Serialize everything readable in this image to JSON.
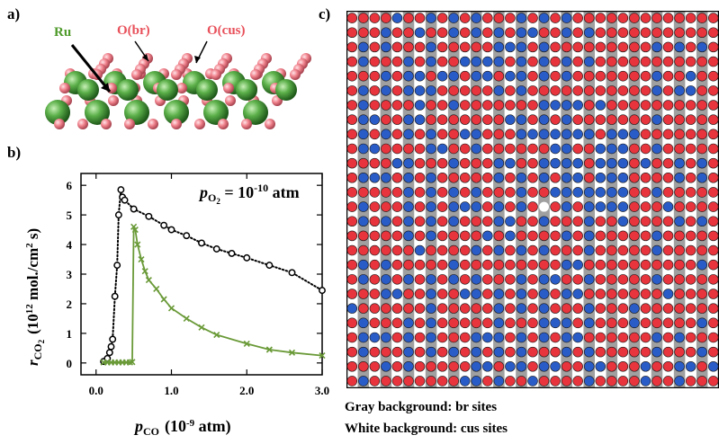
{
  "panel_a": {
    "letter": "a)",
    "labels": {
      "ru": "Ru",
      "o_br": "O(br)",
      "o_cus": "O(cus)"
    },
    "colors": {
      "ru": "#5cb04a",
      "o": "#f0828c",
      "label_o": "#e8505a",
      "label_ru": "#4e9a2a"
    }
  },
  "panel_b": {
    "letter": "b)",
    "annotation": {
      "p": "p",
      "sub": "O",
      "subsub": "2",
      "rest": " = 10",
      "exp": "-10",
      "unit": " atm"
    },
    "ylabel": {
      "r": "r",
      "sub": "CO",
      "subsub": "2",
      "units_a": "(10",
      "exp": "12",
      "units_b": " mol./cm",
      "exp2": "2",
      "units_c": " s)"
    },
    "xlabel": {
      "p": "p",
      "sub": "CO",
      "units_a": "(10",
      "exp": "-9",
      "units_b": " atm)"
    },
    "colors": {
      "black_series": "#000000",
      "green_series": "#6a9a38"
    }
  },
  "chart_data": {
    "type": "line",
    "title": "",
    "xlabel": "p_CO (10^-9 atm)",
    "ylabel": "r_CO2 (10^12 mol./cm^2 s)",
    "xlim": [
      -0.2,
      3.0
    ],
    "ylim": [
      -0.4,
      6.4
    ],
    "xticks": [
      "0.0",
      "1.0",
      "2.0",
      "3.0"
    ],
    "xtick_values": [
      0,
      1,
      2,
      3
    ],
    "yticks": [
      "0",
      "1",
      "2",
      "3",
      "4",
      "5",
      "6"
    ],
    "ytick_values": [
      0,
      1,
      2,
      3,
      4,
      5,
      6
    ],
    "series": [
      {
        "marker": "circle",
        "line": "dotted",
        "color": "#000000",
        "x": [
          0.1,
          0.15,
          0.18,
          0.2,
          0.22,
          0.25,
          0.28,
          0.3,
          0.33,
          0.35,
          0.38,
          0.5,
          0.7,
          0.9,
          1.0,
          1.2,
          1.4,
          1.6,
          1.8,
          2.0,
          2.3,
          2.6,
          3.0
        ],
        "y": [
          0.05,
          0.15,
          0.35,
          0.55,
          0.8,
          2.25,
          3.3,
          5.0,
          5.85,
          5.6,
          5.5,
          5.2,
          4.95,
          4.65,
          4.5,
          4.3,
          4.05,
          3.85,
          3.7,
          3.55,
          3.3,
          3.05,
          2.45
        ]
      },
      {
        "marker": "x",
        "line": "solid",
        "color": "#6a9a38",
        "x": [
          0.1,
          0.15,
          0.2,
          0.25,
          0.3,
          0.35,
          0.4,
          0.45,
          0.48,
          0.5,
          0.52,
          0.55,
          0.6,
          0.65,
          0.7,
          0.8,
          0.9,
          1.0,
          1.2,
          1.4,
          1.6,
          2.0,
          2.3,
          2.6,
          3.0
        ],
        "y": [
          0.02,
          0.02,
          0.02,
          0.02,
          0.02,
          0.02,
          0.02,
          0.02,
          0.03,
          4.6,
          4.5,
          4.0,
          3.5,
          3.1,
          2.8,
          2.5,
          2.15,
          1.85,
          1.5,
          1.2,
          0.95,
          0.65,
          0.45,
          0.35,
          0.25
        ]
      }
    ]
  },
  "panel_c": {
    "letter": "c)",
    "lattice": {
      "columns": 33,
      "rows": 26,
      "colors": {
        "red": "#e8343c",
        "blue": "#2a5cc8",
        "empty": "#ffffff",
        "bg_br": "#a0a0a0",
        "bg_cus": "#ffffff"
      },
      "vacancy": {
        "col": 17,
        "row": 13
      }
    },
    "caption_line1": "Gray background:  br sites",
    "caption_line2": "White background: cus sites"
  }
}
